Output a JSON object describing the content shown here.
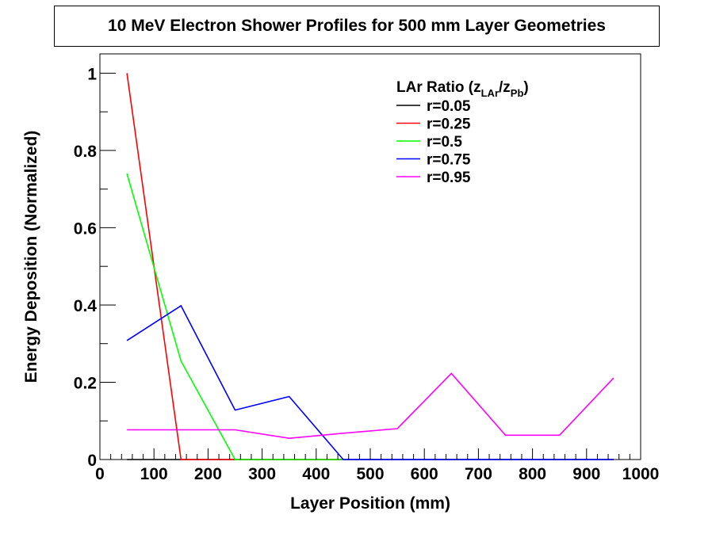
{
  "chart_data": {
    "type": "line",
    "title": "10 MeV Electron Shower Profiles for 500 mm Layer Geometries",
    "xlabel": "Layer Position (mm)",
    "ylabel": "Energy Deposition (Normalized)",
    "xlim": [
      0,
      1000
    ],
    "ylim": [
      0,
      1.05
    ],
    "x_ticks": [
      "0",
      "100",
      "200",
      "300",
      "400",
      "500",
      "600",
      "700",
      "800",
      "900",
      "1000"
    ],
    "y_ticks": [
      "0",
      "0.2",
      "0.4",
      "0.6",
      "0.8",
      "1"
    ],
    "grid": false,
    "legend": {
      "placement": "top-right",
      "title_main": "LAr Ratio (z",
      "title_sub1": "LAr",
      "title_mid": "/z",
      "title_sub2": "Pb",
      "title_end": ")"
    },
    "series": [
      {
        "name": "r=0.05",
        "color": "#000000",
        "x": [
          50,
          150,
          250,
          350,
          450,
          550,
          650,
          750,
          850,
          950
        ],
        "y": [
          0,
          0,
          0,
          0,
          0,
          0,
          0,
          0,
          0,
          0
        ]
      },
      {
        "name": "r=0.25",
        "color": "#ff0000",
        "x": [
          50,
          150,
          250,
          350,
          450
        ],
        "y": [
          1.0,
          0,
          0,
          0,
          0
        ]
      },
      {
        "name": "r=0.5",
        "color": "#00ff00",
        "x": [
          50,
          150,
          250,
          350,
          450
        ],
        "y": [
          0.74,
          0.255,
          0,
          0,
          0
        ]
      },
      {
        "name": "r=0.75",
        "color": "#0000ff",
        "x": [
          50,
          150,
          250,
          350,
          450,
          550,
          650,
          750,
          850,
          950
        ],
        "y": [
          0.308,
          0.398,
          0.128,
          0.163,
          0,
          0,
          0,
          0,
          0,
          0
        ]
      },
      {
        "name": "r=0.95",
        "color": "#ff00ff",
        "x": [
          50,
          150,
          250,
          350,
          450,
          550,
          650,
          750,
          850,
          950
        ],
        "y": [
          0.077,
          0.077,
          0.077,
          0.055,
          0.068,
          0.08,
          0.223,
          0.063,
          0.063,
          0.211
        ]
      }
    ]
  }
}
